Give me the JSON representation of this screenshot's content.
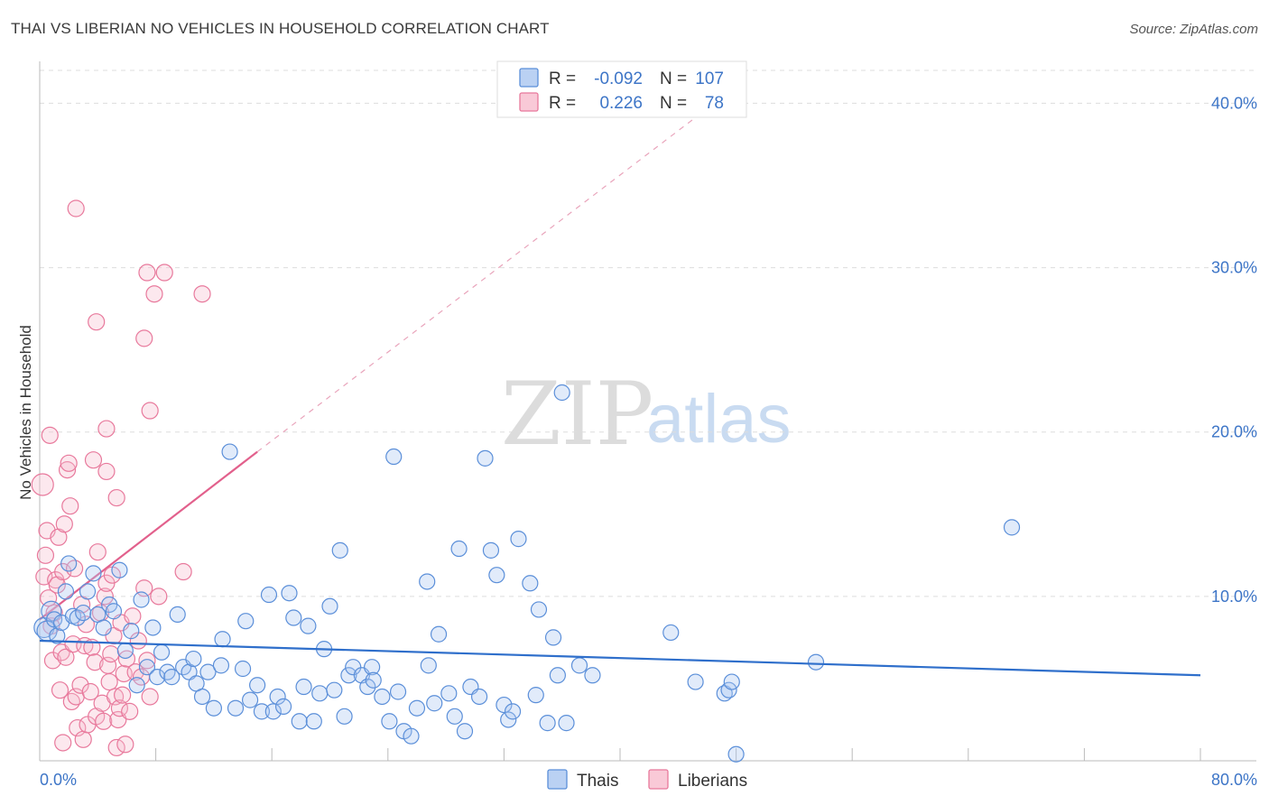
{
  "header": {
    "title": "THAI VS LIBERIAN NO VEHICLES IN HOUSEHOLD CORRELATION CHART",
    "source": "Source: ZipAtlas.com"
  },
  "watermark": {
    "zip": "ZIP",
    "atlas": "atlas"
  },
  "legend": {
    "rows": [
      {
        "r_label": "R =",
        "r_value": "-0.092",
        "n_label": "N =",
        "n_value": "107",
        "color": "#8fb4ec"
      },
      {
        "r_label": "R =",
        "r_value": "0.226",
        "n_label": "N =",
        "n_value": "78",
        "color": "#f4a8c0"
      }
    ]
  },
  "bottom_legend": [
    {
      "label": "Thais",
      "color": "#8fb4ec"
    },
    {
      "label": "Liberians",
      "color": "#f4a8c0"
    }
  ],
  "colors": {
    "thai_fill": "#a9c6f0",
    "thai_stroke": "#5b8fd9",
    "thai_line": "#2f6fcb",
    "lib_fill": "#f7bccd",
    "lib_stroke": "#e8799c",
    "lib_line": "#e2608c",
    "grid": "#dddddd",
    "accent_text": "#3d75c7"
  },
  "chart_data": {
    "type": "scatter",
    "title": "THAI VS LIBERIAN NO VEHICLES IN HOUSEHOLD CORRELATION CHART",
    "xlabel": "",
    "ylabel": "No Vehicles in Household",
    "xlim": [
      0,
      80
    ],
    "ylim": [
      0,
      42
    ],
    "x_tick_labels": [
      {
        "value": 0,
        "label": "0.0%"
      },
      {
        "value": 80,
        "label": "80.0%"
      }
    ],
    "y_tick_labels": [
      {
        "value": 10,
        "label": "10.0%"
      },
      {
        "value": 20,
        "label": "20.0%"
      },
      {
        "value": 30,
        "label": "30.0%"
      },
      {
        "value": 40,
        "label": "40.0%"
      }
    ],
    "x_minor_ticks": [
      8,
      16,
      24,
      32,
      40,
      48,
      56,
      64,
      72,
      80
    ],
    "series": [
      {
        "name": "Thais",
        "trend": {
          "x_start": 0,
          "y_start": 7.3,
          "x_end": 80,
          "y_end": 5.2,
          "dashed_extension": false
        },
        "points": [
          [
            0.3,
            8.1
          ],
          [
            0.5,
            7.9
          ],
          [
            0.8,
            9.1
          ],
          [
            1.0,
            8.6
          ],
          [
            1.2,
            7.6
          ],
          [
            1.5,
            8.4
          ],
          [
            1.8,
            10.3
          ],
          [
            2.0,
            12.0
          ],
          [
            2.3,
            8.8
          ],
          [
            2.6,
            8.7
          ],
          [
            3.0,
            9.0
          ],
          [
            3.3,
            10.3
          ],
          [
            3.7,
            11.4
          ],
          [
            4.0,
            8.9
          ],
          [
            4.4,
            8.1
          ],
          [
            4.8,
            9.5
          ],
          [
            5.1,
            9.1
          ],
          [
            5.5,
            11.6
          ],
          [
            5.9,
            6.7
          ],
          [
            6.3,
            7.9
          ],
          [
            6.7,
            4.6
          ],
          [
            7.0,
            9.8
          ],
          [
            7.4,
            5.7
          ],
          [
            7.8,
            8.1
          ],
          [
            8.1,
            5.1
          ],
          [
            8.4,
            6.6
          ],
          [
            8.8,
            5.4
          ],
          [
            9.1,
            5.1
          ],
          [
            9.5,
            8.9
          ],
          [
            9.9,
            5.7
          ],
          [
            10.3,
            5.4
          ],
          [
            10.6,
            6.2
          ],
          [
            10.8,
            4.7
          ],
          [
            11.2,
            3.9
          ],
          [
            11.6,
            5.4
          ],
          [
            12.0,
            3.2
          ],
          [
            12.5,
            5.8
          ],
          [
            12.6,
            7.4
          ],
          [
            13.1,
            18.8
          ],
          [
            13.5,
            3.2
          ],
          [
            14.0,
            5.6
          ],
          [
            14.2,
            8.5
          ],
          [
            14.5,
            3.7
          ],
          [
            15.0,
            4.6
          ],
          [
            15.3,
            3.0
          ],
          [
            15.8,
            10.1
          ],
          [
            16.1,
            3.0
          ],
          [
            16.4,
            3.9
          ],
          [
            16.8,
            3.3
          ],
          [
            17.2,
            10.2
          ],
          [
            17.5,
            8.7
          ],
          [
            17.9,
            2.4
          ],
          [
            18.2,
            4.5
          ],
          [
            18.5,
            8.2
          ],
          [
            18.9,
            2.4
          ],
          [
            19.3,
            4.1
          ],
          [
            19.6,
            6.8
          ],
          [
            20.0,
            9.4
          ],
          [
            20.3,
            4.3
          ],
          [
            20.7,
            12.8
          ],
          [
            21.0,
            2.7
          ],
          [
            21.3,
            5.2
          ],
          [
            21.6,
            5.7
          ],
          [
            22.2,
            5.2
          ],
          [
            22.6,
            4.5
          ],
          [
            22.9,
            5.7
          ],
          [
            23.0,
            4.9
          ],
          [
            23.6,
            3.9
          ],
          [
            24.1,
            2.4
          ],
          [
            24.4,
            18.5
          ],
          [
            24.7,
            4.2
          ],
          [
            25.1,
            1.8
          ],
          [
            25.6,
            1.5
          ],
          [
            26.0,
            3.2
          ],
          [
            26.7,
            10.9
          ],
          [
            26.8,
            5.8
          ],
          [
            27.2,
            3.5
          ],
          [
            27.5,
            7.7
          ],
          [
            28.2,
            4.1
          ],
          [
            28.6,
            2.7
          ],
          [
            28.9,
            12.9
          ],
          [
            29.3,
            1.8
          ],
          [
            29.7,
            4.5
          ],
          [
            30.3,
            3.9
          ],
          [
            30.7,
            18.4
          ],
          [
            31.1,
            12.8
          ],
          [
            31.5,
            11.3
          ],
          [
            32.0,
            3.4
          ],
          [
            32.3,
            2.5
          ],
          [
            32.6,
            3.0
          ],
          [
            33.0,
            13.5
          ],
          [
            33.8,
            10.8
          ],
          [
            34.2,
            4.0
          ],
          [
            34.4,
            9.2
          ],
          [
            35.0,
            2.3
          ],
          [
            35.4,
            7.5
          ],
          [
            35.7,
            5.2
          ],
          [
            36.0,
            22.4
          ],
          [
            36.3,
            2.3
          ],
          [
            37.2,
            5.8
          ],
          [
            38.1,
            5.2
          ],
          [
            43.5,
            7.8
          ],
          [
            45.2,
            4.8
          ],
          [
            47.2,
            4.1
          ],
          [
            47.5,
            4.3
          ],
          [
            47.7,
            4.8
          ],
          [
            48.0,
            0.4
          ],
          [
            53.5,
            6.0
          ],
          [
            67.0,
            14.2
          ]
        ]
      },
      {
        "name": "Liberians",
        "trend": {
          "x_start": 0,
          "y_start": 8.6,
          "x_end": 15,
          "y_end": 18.8,
          "dash_end_x": 45,
          "dash_end_y": 39.0
        },
        "points": [
          [
            0.2,
            16.8
          ],
          [
            0.3,
            11.2
          ],
          [
            0.4,
            12.5
          ],
          [
            0.5,
            14.0
          ],
          [
            0.6,
            9.9
          ],
          [
            0.7,
            19.8
          ],
          [
            0.8,
            8.2
          ],
          [
            0.9,
            6.1
          ],
          [
            1.0,
            9.0
          ],
          [
            1.1,
            11.0
          ],
          [
            1.2,
            10.7
          ],
          [
            1.3,
            13.6
          ],
          [
            1.4,
            4.3
          ],
          [
            1.5,
            6.6
          ],
          [
            1.6,
            11.5
          ],
          [
            1.7,
            14.4
          ],
          [
            1.8,
            6.3
          ],
          [
            1.9,
            17.7
          ],
          [
            2.0,
            18.1
          ],
          [
            2.1,
            15.5
          ],
          [
            2.2,
            3.6
          ],
          [
            2.3,
            7.1
          ],
          [
            2.4,
            11.7
          ],
          [
            2.5,
            3.9
          ],
          [
            2.6,
            2.0
          ],
          [
            2.8,
            4.6
          ],
          [
            2.9,
            9.5
          ],
          [
            3.0,
            1.3
          ],
          [
            3.1,
            7.0
          ],
          [
            3.2,
            8.3
          ],
          [
            3.3,
            2.2
          ],
          [
            3.5,
            4.2
          ],
          [
            3.6,
            6.9
          ],
          [
            3.7,
            18.3
          ],
          [
            3.8,
            6.0
          ],
          [
            3.9,
            2.7
          ],
          [
            4.0,
            12.7
          ],
          [
            4.2,
            9.0
          ],
          [
            4.3,
            3.5
          ],
          [
            4.4,
            2.4
          ],
          [
            4.5,
            10.0
          ],
          [
            4.6,
            10.8
          ],
          [
            4.7,
            5.8
          ],
          [
            4.8,
            4.8
          ],
          [
            4.9,
            6.5
          ],
          [
            5.0,
            11.3
          ],
          [
            5.1,
            7.6
          ],
          [
            5.2,
            3.9
          ],
          [
            5.3,
            0.8
          ],
          [
            5.4,
            2.5
          ],
          [
            5.5,
            3.2
          ],
          [
            5.6,
            8.4
          ],
          [
            5.7,
            4.0
          ],
          [
            5.8,
            5.3
          ],
          [
            5.9,
            1.0
          ],
          [
            6.0,
            6.2
          ],
          [
            6.2,
            3.0
          ],
          [
            6.4,
            8.8
          ],
          [
            6.6,
            5.4
          ],
          [
            6.8,
            7.3
          ],
          [
            7.0,
            5.1
          ],
          [
            7.2,
            10.5
          ],
          [
            7.4,
            6.1
          ],
          [
            7.6,
            3.9
          ],
          [
            2.5,
            33.6
          ],
          [
            3.9,
            26.7
          ],
          [
            7.2,
            25.7
          ],
          [
            7.4,
            29.7
          ],
          [
            7.9,
            28.4
          ],
          [
            8.6,
            29.7
          ],
          [
            11.2,
            28.4
          ],
          [
            7.6,
            21.3
          ],
          [
            4.6,
            20.2
          ],
          [
            4.6,
            17.6
          ],
          [
            5.3,
            16.0
          ],
          [
            9.9,
            11.5
          ],
          [
            8.2,
            10.0
          ],
          [
            1.6,
            1.1
          ]
        ]
      }
    ]
  }
}
